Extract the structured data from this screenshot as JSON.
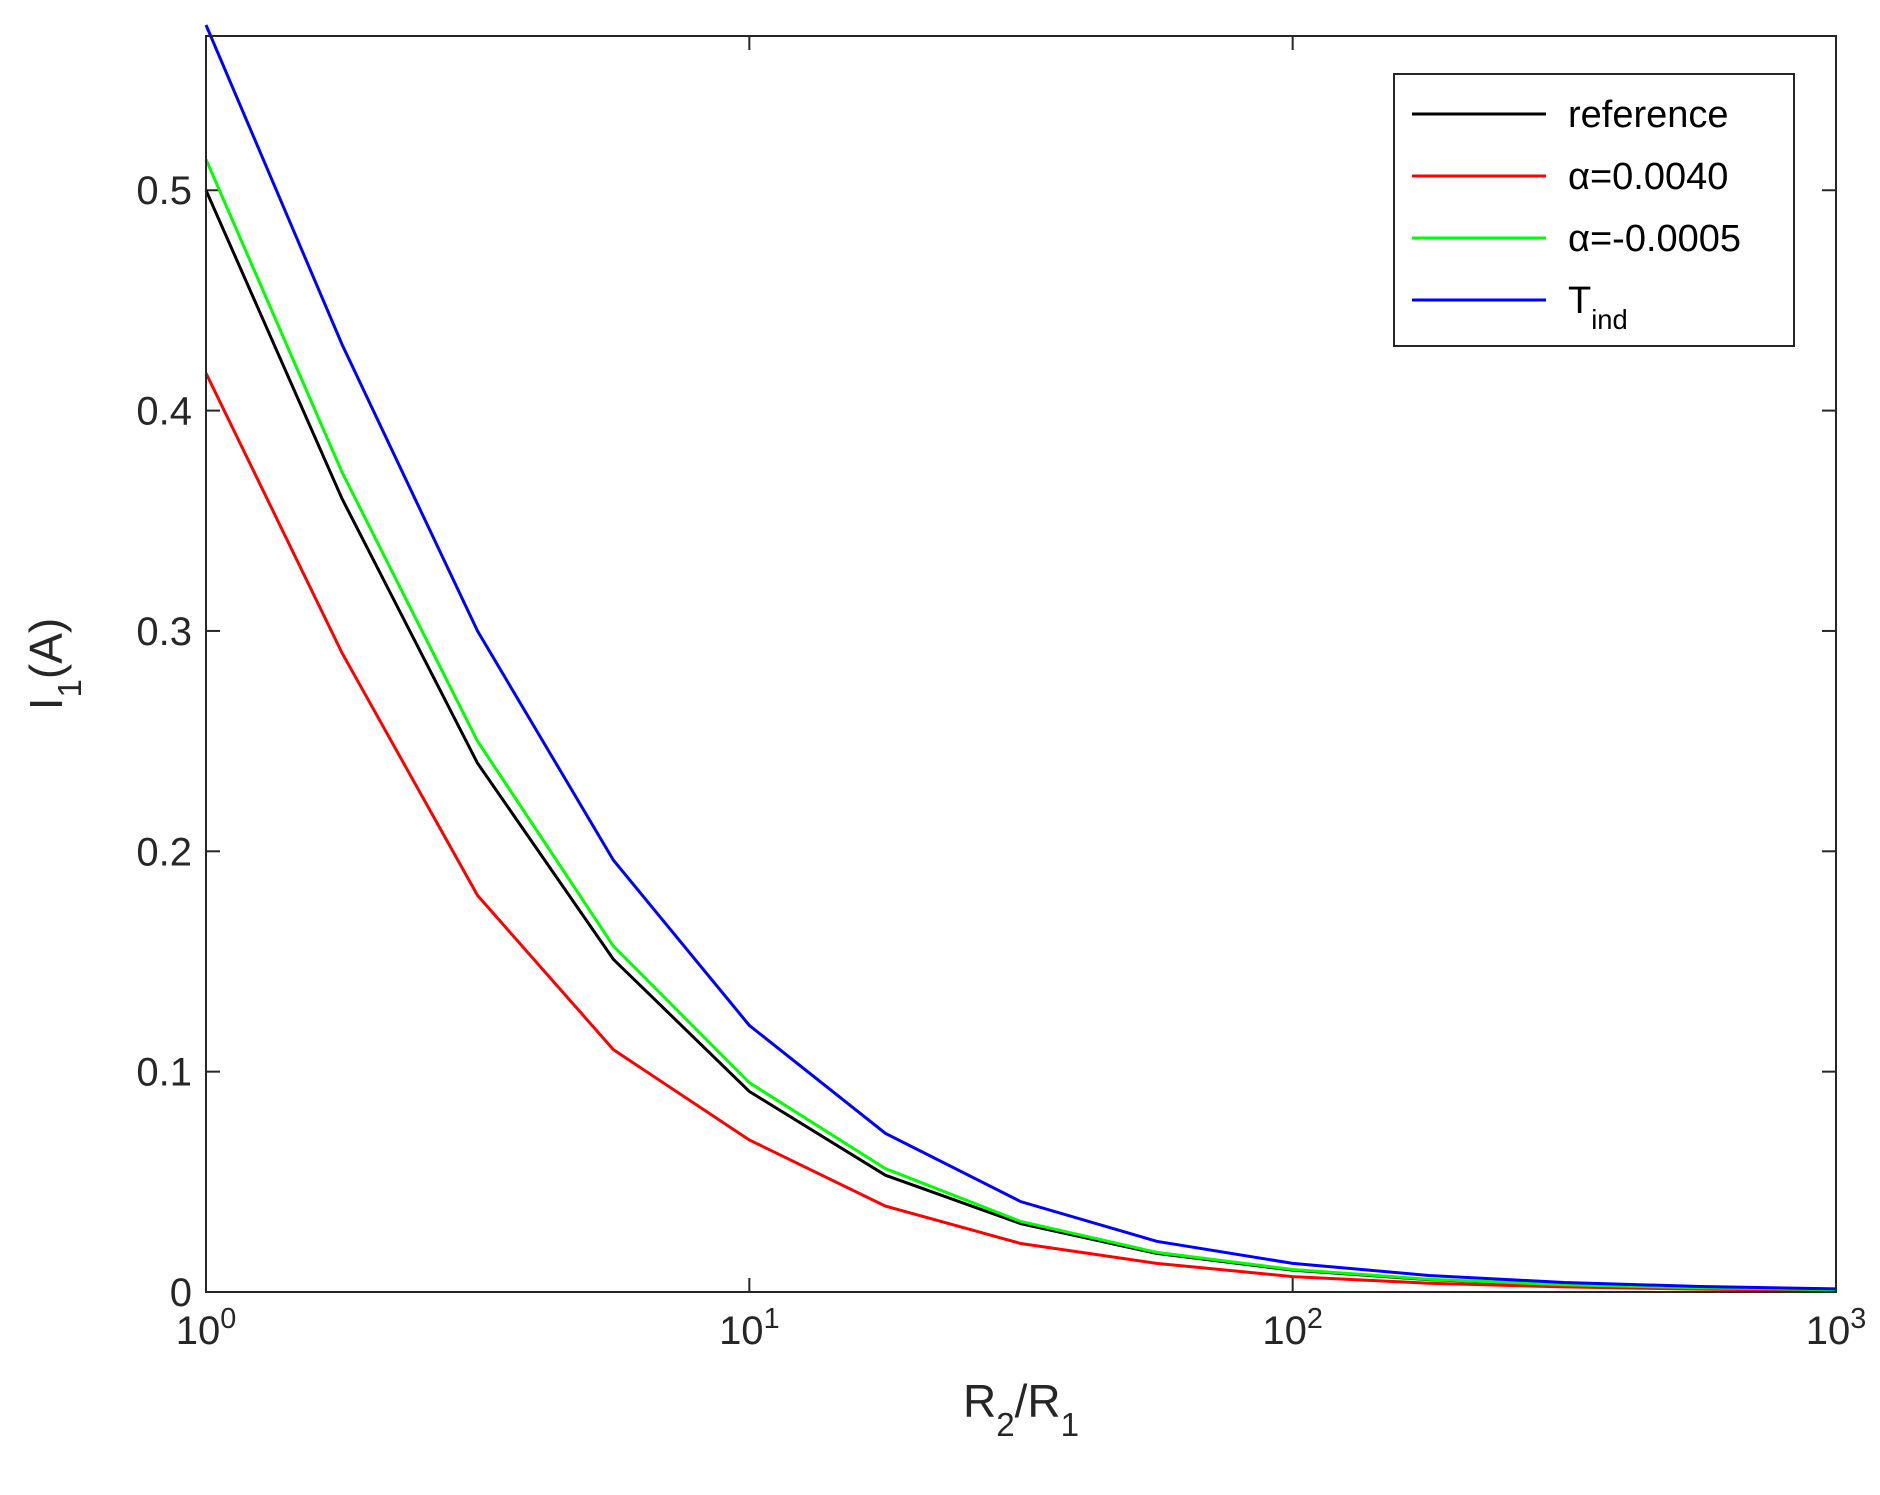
{
  "chart_data": {
    "type": "line",
    "xlabel": "R_{2}/R_{1}",
    "ylabel": "I_{1}(A)",
    "x": [
      1,
      1.78,
      3.16,
      5.62,
      10,
      17.8,
      31.6,
      56.2,
      100,
      178,
      316,
      562,
      1000
    ],
    "series": [
      {
        "name": "reference",
        "color": "#000000",
        "values": [
          0.5,
          0.36,
          0.24,
          0.151,
          0.091,
          0.053,
          0.031,
          0.0175,
          0.0099,
          0.0056,
          0.0032,
          0.0018,
          0.001
        ]
      },
      {
        "name": "α=0.0040",
        "color": "#ff0000",
        "values": [
          0.417,
          0.29,
          0.18,
          0.11,
          0.069,
          0.039,
          0.022,
          0.013,
          0.007,
          0.004,
          0.0023,
          0.0013,
          0.0007
        ]
      },
      {
        "name": "α=-0.0005",
        "color": "#00ff00",
        "values": [
          0.514,
          0.372,
          0.25,
          0.157,
          0.095,
          0.056,
          0.032,
          0.018,
          0.0102,
          0.0058,
          0.0033,
          0.0019,
          0.0011
        ]
      },
      {
        "name": "T_{ind}",
        "color": "#0000ff",
        "values": [
          0.575,
          0.43,
          0.3,
          0.196,
          0.121,
          0.072,
          0.041,
          0.023,
          0.013,
          0.0075,
          0.0043,
          0.0025,
          0.0014
        ]
      }
    ],
    "xscale": "log",
    "xlim": [
      1,
      1000
    ],
    "xticks": [
      {
        "value": 1,
        "label": "10^{0}"
      },
      {
        "value": 10,
        "label": "10^{1}"
      },
      {
        "value": 100,
        "label": "10^{2}"
      },
      {
        "value": 1000,
        "label": "10^{3}"
      }
    ],
    "ylim": [
      0,
      0.57
    ],
    "yticks": [
      0,
      0.1,
      0.2,
      0.3,
      0.4,
      0.5
    ],
    "grid": false,
    "legend": "upper right"
  }
}
